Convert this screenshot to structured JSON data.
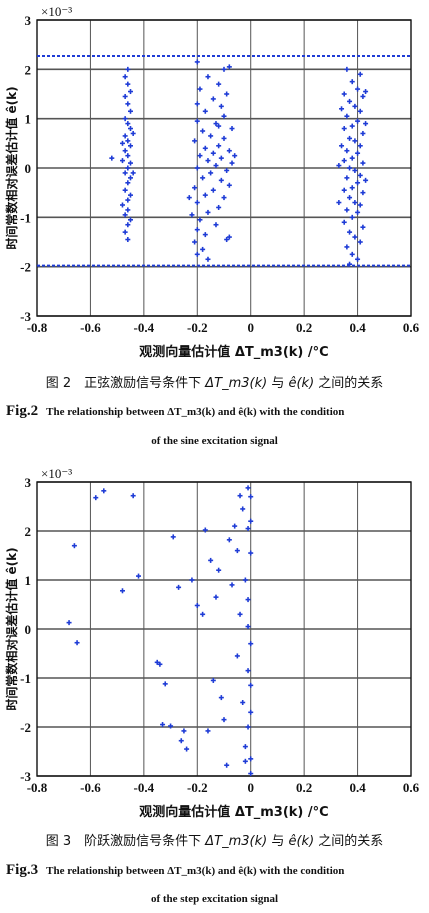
{
  "chart_data": [
    {
      "type": "scatter",
      "title": "",
      "xlabel": "观测向量估计值 ΔT_m3(k) /°C",
      "ylabel": "时间常数相对误差估计值 ê(k)",
      "exponent_label": "×10⁻³",
      "xlim": [
        -0.8,
        0.6
      ],
      "ylim": [
        -3,
        3
      ],
      "xticks": [
        "-0.8",
        "-0.6",
        "-0.4",
        "-0.2",
        "0",
        "0.2",
        "0.4",
        "0.6"
      ],
      "yticks": [
        "-3",
        "-2",
        "-1",
        "0",
        "1",
        "2",
        "3"
      ],
      "grid": true,
      "marker_color": "#1f3cd6",
      "reference_lines": [
        2.27,
        -1.98
      ],
      "points": [
        [
          -0.46,
          2.0
        ],
        [
          -0.47,
          1.85
        ],
        [
          -0.46,
          1.7
        ],
        [
          -0.45,
          1.55
        ],
        [
          -0.47,
          1.45
        ],
        [
          -0.46,
          1.3
        ],
        [
          -0.45,
          1.15
        ],
        [
          -0.47,
          1.0
        ],
        [
          -0.46,
          0.9
        ],
        [
          -0.45,
          0.8
        ],
        [
          -0.47,
          0.65
        ],
        [
          -0.46,
          0.55
        ],
        [
          -0.45,
          0.45
        ],
        [
          -0.47,
          0.35
        ],
        [
          -0.46,
          0.25
        ],
        [
          -0.48,
          0.15
        ],
        [
          -0.45,
          0.1
        ],
        [
          -0.46,
          0.0
        ],
        [
          -0.47,
          -0.1
        ],
        [
          -0.45,
          -0.2
        ],
        [
          -0.46,
          -0.3
        ],
        [
          -0.47,
          -0.45
        ],
        [
          -0.45,
          -0.55
        ],
        [
          -0.46,
          -0.65
        ],
        [
          -0.48,
          -0.75
        ],
        [
          -0.46,
          -0.85
        ],
        [
          -0.47,
          -0.95
        ],
        [
          -0.45,
          -1.05
        ],
        [
          -0.46,
          -1.15
        ],
        [
          -0.47,
          -1.3
        ],
        [
          -0.46,
          -1.45
        ],
        [
          -0.52,
          0.2
        ],
        [
          -0.44,
          -0.1
        ],
        [
          -0.48,
          0.5
        ],
        [
          -0.44,
          0.7
        ],
        [
          -0.2,
          2.15
        ],
        [
          -0.08,
          2.05
        ],
        [
          -0.16,
          1.85
        ],
        [
          -0.12,
          1.7
        ],
        [
          -0.19,
          1.6
        ],
        [
          -0.09,
          1.5
        ],
        [
          -0.14,
          1.4
        ],
        [
          -0.2,
          1.3
        ],
        [
          -0.11,
          1.25
        ],
        [
          -0.17,
          1.15
        ],
        [
          -0.1,
          1.05
        ],
        [
          -0.2,
          0.95
        ],
        [
          -0.13,
          0.9
        ],
        [
          -0.07,
          0.8
        ],
        [
          -0.18,
          0.75
        ],
        [
          -0.15,
          0.65
        ],
        [
          -0.1,
          0.6
        ],
        [
          -0.21,
          0.55
        ],
        [
          -0.12,
          0.45
        ],
        [
          -0.17,
          0.4
        ],
        [
          -0.08,
          0.35
        ],
        [
          -0.14,
          0.3
        ],
        [
          -0.19,
          0.25
        ],
        [
          -0.11,
          0.2
        ],
        [
          -0.16,
          0.15
        ],
        [
          -0.07,
          0.1
        ],
        [
          -0.13,
          0.05
        ],
        [
          -0.2,
          0.0
        ],
        [
          -0.09,
          -0.05
        ],
        [
          -0.15,
          -0.1
        ],
        [
          -0.18,
          -0.2
        ],
        [
          -0.11,
          -0.25
        ],
        [
          -0.08,
          -0.35
        ],
        [
          -0.21,
          -0.4
        ],
        [
          -0.14,
          -0.45
        ],
        [
          -0.17,
          -0.55
        ],
        [
          -0.1,
          -0.6
        ],
        [
          -0.2,
          -0.7
        ],
        [
          -0.12,
          -0.8
        ],
        [
          -0.16,
          -0.9
        ],
        [
          -0.22,
          -0.95
        ],
        [
          -0.19,
          -1.05
        ],
        [
          -0.13,
          -1.15
        ],
        [
          -0.2,
          -1.25
        ],
        [
          -0.17,
          -1.35
        ],
        [
          -0.08,
          -1.4
        ],
        [
          -0.21,
          -1.5
        ],
        [
          -0.18,
          -1.65
        ],
        [
          -0.2,
          -1.75
        ],
        [
          -0.16,
          -1.85
        ],
        [
          -0.09,
          -1.45
        ],
        [
          -0.12,
          0.85
        ],
        [
          -0.06,
          0.25
        ],
        [
          -0.23,
          -0.6
        ],
        [
          -0.1,
          2.0
        ],
        [
          0.36,
          2.0
        ],
        [
          0.41,
          1.9
        ],
        [
          0.38,
          1.75
        ],
        [
          0.4,
          1.6
        ],
        [
          0.35,
          1.5
        ],
        [
          0.42,
          1.45
        ],
        [
          0.37,
          1.35
        ],
        [
          0.39,
          1.25
        ],
        [
          0.41,
          1.15
        ],
        [
          0.36,
          1.05
        ],
        [
          0.4,
          0.95
        ],
        [
          0.38,
          0.85
        ],
        [
          0.35,
          0.8
        ],
        [
          0.42,
          0.7
        ],
        [
          0.37,
          0.6
        ],
        [
          0.39,
          0.55
        ],
        [
          0.41,
          0.45
        ],
        [
          0.36,
          0.35
        ],
        [
          0.4,
          0.3
        ],
        [
          0.38,
          0.2
        ],
        [
          0.35,
          0.15
        ],
        [
          0.42,
          0.1
        ],
        [
          0.37,
          0.0
        ],
        [
          0.39,
          -0.05
        ],
        [
          0.41,
          -0.15
        ],
        [
          0.36,
          -0.2
        ],
        [
          0.4,
          -0.3
        ],
        [
          0.38,
          -0.4
        ],
        [
          0.35,
          -0.45
        ],
        [
          0.42,
          -0.5
        ],
        [
          0.37,
          -0.6
        ],
        [
          0.39,
          -0.7
        ],
        [
          0.41,
          -0.75
        ],
        [
          0.36,
          -0.85
        ],
        [
          0.4,
          -0.9
        ],
        [
          0.38,
          -1.0
        ],
        [
          0.35,
          -1.1
        ],
        [
          0.42,
          -1.2
        ],
        [
          0.37,
          -1.3
        ],
        [
          0.39,
          -1.4
        ],
        [
          0.41,
          -1.5
        ],
        [
          0.36,
          -1.6
        ],
        [
          0.38,
          -1.75
        ],
        [
          0.4,
          -1.85
        ],
        [
          0.37,
          -1.95
        ],
        [
          0.34,
          0.45
        ],
        [
          0.43,
          -0.25
        ],
        [
          0.33,
          -0.7
        ],
        [
          0.43,
          0.9
        ],
        [
          0.34,
          1.2
        ],
        [
          0.43,
          1.55
        ],
        [
          0.33,
          0.05
        ]
      ]
    },
    {
      "type": "scatter",
      "title": "",
      "xlabel": "观测向量估计值 ΔT_m3(k) /°C",
      "ylabel": "时间常数相对误差估计值 ê(k)",
      "exponent_label": "×10⁻³",
      "xlim": [
        -0.8,
        0.6
      ],
      "ylim": [
        -3,
        3
      ],
      "xticks": [
        "-0.8",
        "-0.6",
        "-0.4",
        "-0.2",
        "0",
        "0.2",
        "0.4",
        "0.6"
      ],
      "yticks": [
        "-3",
        "-2",
        "-1",
        "0",
        "1",
        "2",
        "3"
      ],
      "grid": true,
      "marker_color": "#1f3cd6",
      "points": [
        [
          -0.68,
          0.13
        ],
        [
          -0.66,
          1.7
        ],
        [
          -0.65,
          -0.28
        ],
        [
          -0.58,
          2.68
        ],
        [
          -0.55,
          2.82
        ],
        [
          -0.48,
          0.78
        ],
        [
          -0.44,
          2.72
        ],
        [
          -0.42,
          1.08
        ],
        [
          -0.35,
          -0.68
        ],
        [
          -0.34,
          -0.72
        ],
        [
          -0.33,
          -1.95
        ],
        [
          -0.32,
          -1.12
        ],
        [
          -0.3,
          -1.98
        ],
        [
          -0.29,
          1.88
        ],
        [
          -0.27,
          0.85
        ],
        [
          -0.26,
          -2.28
        ],
        [
          -0.25,
          -2.08
        ],
        [
          -0.24,
          -2.45
        ],
        [
          -0.22,
          1.0
        ],
        [
          -0.2,
          0.48
        ],
        [
          -0.18,
          0.3
        ],
        [
          -0.17,
          2.02
        ],
        [
          -0.16,
          -2.08
        ],
        [
          -0.15,
          1.4
        ],
        [
          -0.14,
          -1.05
        ],
        [
          -0.13,
          0.65
        ],
        [
          -0.12,
          1.2
        ],
        [
          -0.11,
          -1.4
        ],
        [
          -0.1,
          -1.85
        ],
        [
          -0.09,
          -2.78
        ],
        [
          -0.08,
          1.82
        ],
        [
          -0.07,
          0.9
        ],
        [
          -0.06,
          2.1
        ],
        [
          -0.05,
          -0.55
        ],
        [
          -0.05,
          1.6
        ],
        [
          -0.04,
          2.72
        ],
        [
          -0.04,
          0.3
        ],
        [
          -0.03,
          -1.5
        ],
        [
          -0.03,
          2.45
        ],
        [
          -0.02,
          -2.4
        ],
        [
          -0.02,
          1.0
        ],
        [
          -0.01,
          -0.85
        ],
        [
          -0.01,
          2.88
        ],
        [
          -0.01,
          -2.0
        ],
        [
          -0.01,
          0.6
        ],
        [
          0.0,
          -2.95
        ],
        [
          0.0,
          2.2
        ],
        [
          0.0,
          -1.15
        ],
        [
          0.0,
          1.55
        ],
        [
          0.0,
          -2.65
        ],
        [
          0.0,
          -0.3
        ],
        [
          -0.01,
          2.05
        ],
        [
          -0.02,
          -2.7
        ],
        [
          -0.01,
          0.05
        ],
        [
          0.0,
          -1.7
        ],
        [
          0.0,
          2.7
        ]
      ]
    }
  ],
  "captions": {
    "fig2_zh_prefix": "图 2　正弦激励信号条件下",
    "fig2_zh_mid": "与",
    "fig2_zh_suffix": "之间的关系",
    "fig2_en_prefix": "Fig.2",
    "fig2_en_text": "The relationship between  ΔT_m3(k)  and  ê(k)  with the condition",
    "fig2_en_line2": "of the sine excitation signal",
    "fig3_zh_prefix": "图 3　阶跃激励信号条件下",
    "fig3_zh_mid": "与",
    "fig3_zh_suffix": "之间的关系",
    "fig3_en_prefix": "Fig.3",
    "fig3_en_text": "The relationship between  ΔT_m3(k)  and  ê(k)  with the condition",
    "fig3_en_line2": "of the step excitation signal",
    "math_dT": "ΔT_m3(k)",
    "math_e": "ê(k)"
  }
}
